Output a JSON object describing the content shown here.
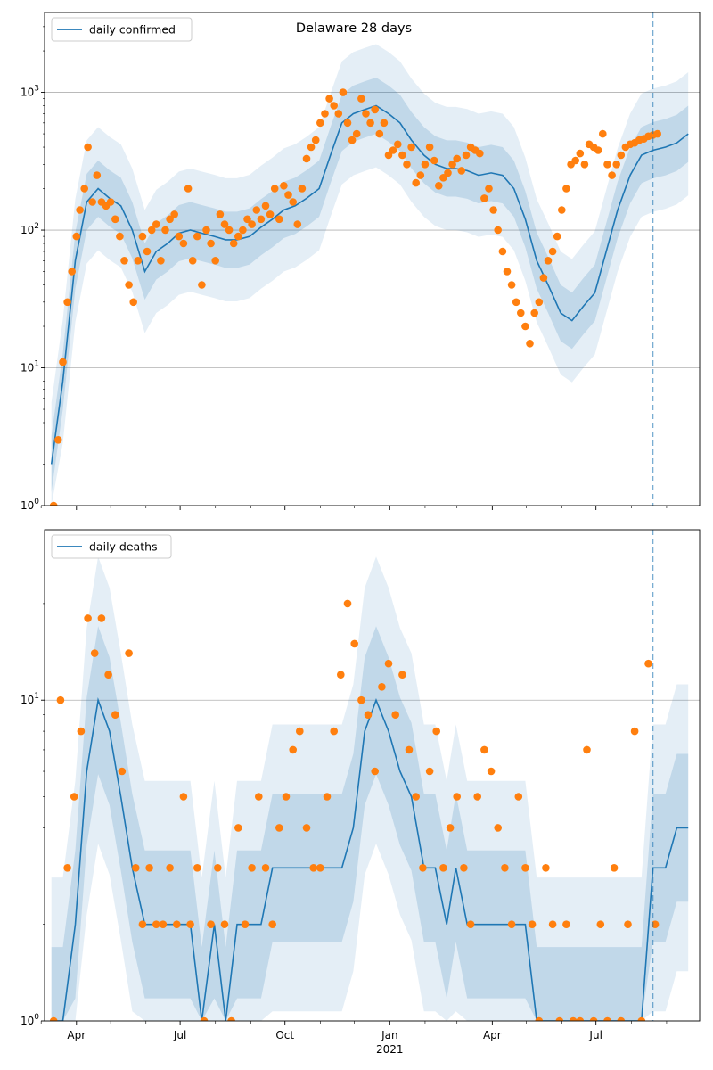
{
  "figure": {
    "title": "Delaware 28 days",
    "colors": {
      "line": "#1f77b4",
      "band": "#1f77b4",
      "points": "#ff7f0e",
      "grid": "#b0b0b0"
    }
  },
  "chart_data": [
    {
      "type": "line",
      "title": "Delaware 28 days",
      "legend": {
        "label": "daily confirmed",
        "placement": "top-left"
      },
      "scale": "log",
      "ylim": [
        1,
        3800
      ],
      "y_ticks": [
        {
          "value": 1,
          "label": "10^0"
        },
        {
          "value": 10,
          "label": "10^1"
        },
        {
          "value": 100,
          "label": "10^2"
        },
        {
          "value": 1000,
          "label": "10^3"
        }
      ],
      "grid": "y-major",
      "x_ticks": [
        "Apr",
        "Jul",
        "Oct",
        "Jan",
        "Apr",
        "Jul"
      ],
      "x_year_label": "2021",
      "forecast_line_date": "2021-08-20",
      "series": [
        {
          "name": "daily confirmed",
          "kind": "line",
          "x": [
            "2020-03-10",
            "2020-03-20",
            "2020-03-31",
            "2020-04-10",
            "2020-04-20",
            "2020-04-30",
            "2020-05-10",
            "2020-05-20",
            "2020-05-31",
            "2020-06-10",
            "2020-06-20",
            "2020-06-30",
            "2020-07-10",
            "2020-07-20",
            "2020-07-31",
            "2020-08-10",
            "2020-08-20",
            "2020-08-31",
            "2020-09-10",
            "2020-09-20",
            "2020-09-30",
            "2020-10-10",
            "2020-10-20",
            "2020-10-31",
            "2020-11-10",
            "2020-11-20",
            "2020-11-30",
            "2020-12-10",
            "2020-12-20",
            "2020-12-31",
            "2021-01-10",
            "2021-01-20",
            "2021-01-31",
            "2021-02-10",
            "2021-02-20",
            "2021-02-28",
            "2021-03-10",
            "2021-03-20",
            "2021-03-31",
            "2021-04-10",
            "2021-04-20",
            "2021-04-30",
            "2021-05-10",
            "2021-05-20",
            "2021-05-31",
            "2021-06-10",
            "2021-06-20",
            "2021-06-30",
            "2021-07-10",
            "2021-07-20",
            "2021-07-31",
            "2021-08-10",
            "2021-08-20",
            "2021-08-31",
            "2021-09-10",
            "2021-09-20"
          ],
          "y": [
            2,
            8,
            60,
            160,
            200,
            170,
            150,
            100,
            50,
            70,
            80,
            95,
            100,
            95,
            90,
            85,
            85,
            90,
            105,
            120,
            140,
            150,
            170,
            200,
            350,
            600,
            700,
            750,
            800,
            700,
            600,
            450,
            350,
            300,
            280,
            280,
            270,
            250,
            260,
            250,
            200,
            120,
            60,
            40,
            25,
            22,
            28,
            35,
            70,
            140,
            250,
            350,
            380,
            400,
            430,
            500
          ],
          "band_50": [
            1.6,
            1.6
          ],
          "band_90": [
            2.8,
            2.8
          ]
        },
        {
          "name": "observed",
          "kind": "scatter",
          "x": [
            "2020-03-12",
            "2020-03-16",
            "2020-03-20",
            "2020-03-24",
            "2020-03-28",
            "2020-04-01",
            "2020-04-04",
            "2020-04-08",
            "2020-04-11",
            "2020-04-15",
            "2020-04-19",
            "2020-04-23",
            "2020-04-27",
            "2020-05-01",
            "2020-05-05",
            "2020-05-09",
            "2020-05-13",
            "2020-05-17",
            "2020-05-21",
            "2020-05-25",
            "2020-05-29",
            "2020-06-02",
            "2020-06-06",
            "2020-06-10",
            "2020-06-14",
            "2020-06-18",
            "2020-06-22",
            "2020-06-26",
            "2020-06-30",
            "2020-07-04",
            "2020-07-08",
            "2020-07-12",
            "2020-07-16",
            "2020-07-20",
            "2020-07-24",
            "2020-07-28",
            "2020-08-01",
            "2020-08-05",
            "2020-08-09",
            "2020-08-13",
            "2020-08-17",
            "2020-08-21",
            "2020-08-25",
            "2020-08-29",
            "2020-09-02",
            "2020-09-06",
            "2020-09-10",
            "2020-09-14",
            "2020-09-18",
            "2020-09-22",
            "2020-09-26",
            "2020-09-30",
            "2020-10-04",
            "2020-10-08",
            "2020-10-12",
            "2020-10-16",
            "2020-10-20",
            "2020-10-24",
            "2020-10-28",
            "2020-11-01",
            "2020-11-05",
            "2020-11-09",
            "2020-11-13",
            "2020-11-17",
            "2020-11-21",
            "2020-11-25",
            "2020-11-29",
            "2020-12-03",
            "2020-12-07",
            "2020-12-11",
            "2020-12-15",
            "2020-12-19",
            "2020-12-23",
            "2020-12-27",
            "2020-12-31",
            "2021-01-04",
            "2021-01-08",
            "2021-01-12",
            "2021-01-16",
            "2021-01-20",
            "2021-01-24",
            "2021-01-28",
            "2021-02-01",
            "2021-02-05",
            "2021-02-09",
            "2021-02-13",
            "2021-02-17",
            "2021-02-21",
            "2021-02-25",
            "2021-03-01",
            "2021-03-05",
            "2021-03-09",
            "2021-03-13",
            "2021-03-17",
            "2021-03-21",
            "2021-03-25",
            "2021-03-29",
            "2021-04-02",
            "2021-04-06",
            "2021-04-10",
            "2021-04-14",
            "2021-04-18",
            "2021-04-22",
            "2021-04-26",
            "2021-04-30",
            "2021-05-04",
            "2021-05-08",
            "2021-05-12",
            "2021-05-16",
            "2021-05-20",
            "2021-05-24",
            "2021-05-28",
            "2021-06-01",
            "2021-06-05",
            "2021-06-09",
            "2021-06-13",
            "2021-06-17",
            "2021-06-21",
            "2021-06-25",
            "2021-06-29",
            "2021-07-03",
            "2021-07-07",
            "2021-07-11",
            "2021-07-15",
            "2021-07-19",
            "2021-07-23",
            "2021-07-27",
            "2021-07-31",
            "2021-08-04",
            "2021-08-08",
            "2021-08-12",
            "2021-08-16",
            "2021-08-20",
            "2021-08-24"
          ],
          "y": [
            1,
            3,
            11,
            30,
            50,
            90,
            140,
            200,
            400,
            160,
            250,
            160,
            150,
            160,
            120,
            90,
            60,
            40,
            30,
            60,
            90,
            70,
            100,
            110,
            60,
            100,
            120,
            130,
            90,
            80,
            200,
            60,
            90,
            40,
            100,
            80,
            60,
            130,
            110,
            100,
            80,
            90,
            100,
            120,
            110,
            140,
            120,
            150,
            130,
            200,
            120,
            210,
            180,
            160,
            110,
            200,
            330,
            400,
            450,
            600,
            700,
            900,
            800,
            700,
            1000,
            600,
            450,
            500,
            900,
            700,
            600,
            750,
            500,
            600,
            350,
            380,
            420,
            350,
            300,
            400,
            220,
            250,
            300,
            400,
            320,
            210,
            240,
            260,
            300,
            330,
            270,
            350,
            400,
            380,
            360,
            170,
            200,
            140,
            100,
            70,
            50,
            40,
            30,
            25,
            20,
            15,
            25,
            30,
            45,
            60,
            70,
            90,
            140,
            200,
            300,
            320,
            360,
            300,
            420,
            400,
            380,
            500,
            300,
            250,
            300,
            350,
            400,
            420,
            430,
            450,
            460,
            480,
            490,
            500
          ]
        }
      ]
    },
    {
      "type": "line",
      "title": "",
      "legend": {
        "label": "daily deaths",
        "placement": "top-left"
      },
      "scale": "log",
      "ylim": [
        1,
        34
      ],
      "y_ticks": [
        {
          "value": 1,
          "label": "10^0"
        },
        {
          "value": 10,
          "label": "10^1"
        }
      ],
      "grid": "y-major",
      "x_ticks": [
        "Apr",
        "Jul",
        "Oct",
        "Jan",
        "Apr",
        "Jul"
      ],
      "x_year_label": "2021",
      "forecast_line_date": "2021-08-20",
      "series": [
        {
          "name": "daily deaths",
          "kind": "line",
          "x": [
            "2020-03-10",
            "2020-03-20",
            "2020-03-31",
            "2020-04-10",
            "2020-04-20",
            "2020-04-30",
            "2020-05-10",
            "2020-05-20",
            "2020-05-31",
            "2020-06-10",
            "2020-06-20",
            "2020-06-30",
            "2020-07-10",
            "2020-07-20",
            "2020-07-31",
            "2020-08-10",
            "2020-08-20",
            "2020-08-31",
            "2020-09-10",
            "2020-09-20",
            "2020-09-30",
            "2020-10-10",
            "2020-10-20",
            "2020-10-31",
            "2020-11-10",
            "2020-11-20",
            "2020-11-30",
            "2020-12-10",
            "2020-12-20",
            "2020-12-31",
            "2021-01-10",
            "2021-01-20",
            "2021-01-31",
            "2021-02-10",
            "2021-02-20",
            "2021-02-28",
            "2021-03-10",
            "2021-03-20",
            "2021-03-31",
            "2021-04-10",
            "2021-04-20",
            "2021-04-30",
            "2021-05-10",
            "2021-05-20",
            "2021-05-31",
            "2021-06-10",
            "2021-06-20",
            "2021-06-30",
            "2021-07-10",
            "2021-07-20",
            "2021-07-31",
            "2021-08-10",
            "2021-08-20",
            "2021-08-31",
            "2021-09-10",
            "2021-09-20"
          ],
          "y": [
            1,
            1,
            2,
            6,
            10,
            8,
            5,
            3,
            2,
            2,
            2,
            2,
            2,
            1,
            2,
            1,
            2,
            2,
            2,
            3,
            3,
            3,
            3,
            3,
            3,
            3,
            4,
            8,
            10,
            8,
            6,
            5,
            3,
            3,
            2,
            3,
            2,
            2,
            2,
            2,
            2,
            2,
            1,
            1,
            1,
            1,
            1,
            1,
            1,
            1,
            1,
            1,
            3,
            3,
            4,
            4
          ],
          "band_50": [
            1.7,
            1.7
          ],
          "band_90": [
            2.8,
            2.8
          ]
        },
        {
          "name": "observed",
          "kind": "scatter",
          "x": [
            "2020-03-12",
            "2020-03-18",
            "2020-03-24",
            "2020-03-30",
            "2020-04-05",
            "2020-04-11",
            "2020-04-17",
            "2020-04-23",
            "2020-04-29",
            "2020-05-05",
            "2020-05-11",
            "2020-05-17",
            "2020-05-23",
            "2020-05-29",
            "2020-06-04",
            "2020-06-10",
            "2020-06-16",
            "2020-06-22",
            "2020-06-28",
            "2020-07-04",
            "2020-07-10",
            "2020-07-16",
            "2020-07-22",
            "2020-07-28",
            "2020-08-03",
            "2020-08-09",
            "2020-08-15",
            "2020-08-21",
            "2020-08-27",
            "2020-09-02",
            "2020-09-08",
            "2020-09-14",
            "2020-09-20",
            "2020-09-26",
            "2020-10-02",
            "2020-10-08",
            "2020-10-14",
            "2020-10-20",
            "2020-10-26",
            "2020-11-01",
            "2020-11-07",
            "2020-11-13",
            "2020-11-19",
            "2020-11-25",
            "2020-12-01",
            "2020-12-07",
            "2020-12-13",
            "2020-12-19",
            "2020-12-25",
            "2020-12-31",
            "2021-01-06",
            "2021-01-12",
            "2021-01-18",
            "2021-01-24",
            "2021-01-30",
            "2021-02-05",
            "2021-02-11",
            "2021-02-17",
            "2021-02-23",
            "2021-03-01",
            "2021-03-07",
            "2021-03-13",
            "2021-03-19",
            "2021-03-25",
            "2021-03-31",
            "2021-04-06",
            "2021-04-12",
            "2021-04-18",
            "2021-04-24",
            "2021-04-30",
            "2021-05-06",
            "2021-05-12",
            "2021-05-18",
            "2021-05-24",
            "2021-05-30",
            "2021-06-05",
            "2021-06-11",
            "2021-06-17",
            "2021-06-23",
            "2021-06-29",
            "2021-07-05",
            "2021-07-11",
            "2021-07-17",
            "2021-07-23",
            "2021-07-29",
            "2021-08-04",
            "2021-08-10",
            "2021-08-16",
            "2021-08-22"
          ],
          "y": [
            1,
            10,
            3,
            5,
            8,
            18,
            14,
            18,
            12,
            9,
            6,
            14,
            3,
            2,
            3,
            2,
            2,
            3,
            2,
            5,
            2,
            3,
            1,
            2,
            3,
            2,
            1,
            4,
            2,
            3,
            5,
            3,
            2,
            4,
            5,
            7,
            8,
            4,
            3,
            3,
            5,
            8,
            12,
            20,
            15,
            10,
            9,
            6,
            11,
            13,
            9,
            12,
            7,
            5,
            3,
            6,
            8,
            3,
            4,
            5,
            3,
            2,
            5,
            7,
            6,
            4,
            3,
            2,
            5,
            3,
            2,
            1,
            3,
            2,
            1,
            2,
            1,
            1,
            7,
            1,
            2,
            1,
            3,
            1,
            2,
            8,
            1,
            13,
            2
          ]
        }
      ]
    }
  ]
}
